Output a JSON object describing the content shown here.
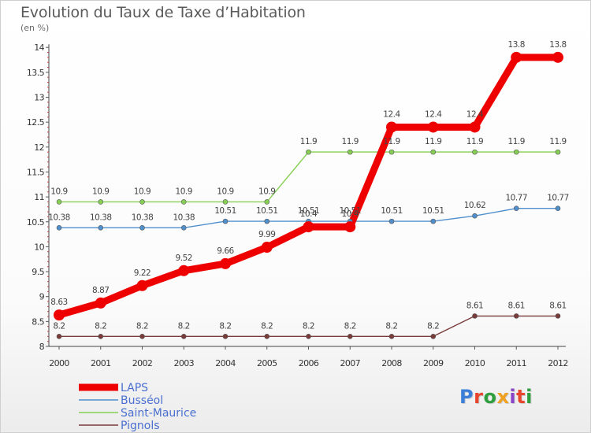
{
  "header": {
    "title": "Evolution du Taux de Taxe d’Habitation",
    "unit": "(en %)"
  },
  "logo": {
    "text": "Proxiti",
    "colors": [
      "#3c7fd8",
      "#e8452c",
      "#2e9e3e",
      "#f0a020",
      "#8a44c8",
      "#e8452c",
      "#2e9e3e"
    ]
  },
  "chart_data": {
    "type": "line",
    "title": "Evolution du Taux de Taxe d’Habitation",
    "ylabel": "(en %)",
    "xlabel": "",
    "x": [
      "2000",
      "2001",
      "2002",
      "2003",
      "2004",
      "2005",
      "2006",
      "2007",
      "2008",
      "2009",
      "2010",
      "2011",
      "2012"
    ],
    "ylim": [
      8,
      14
    ],
    "yticks": [
      "8",
      "8.5",
      "9",
      "9.5",
      "10",
      "10.5",
      "11",
      "11.5",
      "12",
      "12.5",
      "13",
      "13.5",
      "14"
    ],
    "grid": false,
    "legend_position": "bottom-left",
    "series": [
      {
        "name": "LAPS",
        "color": "#ee0000",
        "values": [
          8.63,
          8.87,
          9.22,
          9.52,
          9.66,
          9.99,
          10.4,
          10.4,
          12.4,
          12.4,
          12.4,
          13.8,
          13.8
        ],
        "labels": [
          "8.63",
          "8.87",
          "9.22",
          "9.52",
          "9.66",
          "9.99",
          "10.4",
          "10.4",
          "12.4",
          "12.4",
          "12.4",
          "13.8",
          "13.8"
        ]
      },
      {
        "name": "Busséol",
        "color": "#4f8fcc",
        "values": [
          10.38,
          10.38,
          10.38,
          10.38,
          10.51,
          10.51,
          10.51,
          10.51,
          10.51,
          10.51,
          10.62,
          10.77,
          10.77
        ],
        "labels": [
          "10.38",
          "10.38",
          "10.38",
          "10.38",
          "10.51",
          "10.51",
          "10.51",
          "10.51",
          "10.51",
          "10.51",
          "10.62",
          "10.77",
          "10.77"
        ]
      },
      {
        "name": "Saint-Maurice",
        "color": "#86cf54",
        "values": [
          10.9,
          10.9,
          10.9,
          10.9,
          10.9,
          10.9,
          11.9,
          11.9,
          11.9,
          11.9,
          11.9,
          11.9,
          11.9
        ],
        "labels": [
          "10.9",
          "10.9",
          "10.9",
          "10.9",
          "10.9",
          "10.9",
          "11.9",
          "11.9",
          "11.9",
          "11.9",
          "11.9",
          "11.9",
          "11.9"
        ]
      },
      {
        "name": "Pignols",
        "color": "#7a3b3b",
        "values": [
          8.2,
          8.2,
          8.2,
          8.2,
          8.2,
          8.2,
          8.2,
          8.2,
          8.2,
          8.2,
          8.61,
          8.61,
          8.61
        ],
        "labels": [
          "8.2",
          "8.2",
          "8.2",
          "8.2",
          "8.2",
          "8.2",
          "8.2",
          "8.2",
          "8.2",
          "8.2",
          "8.61",
          "8.61",
          "8.61"
        ]
      }
    ]
  }
}
